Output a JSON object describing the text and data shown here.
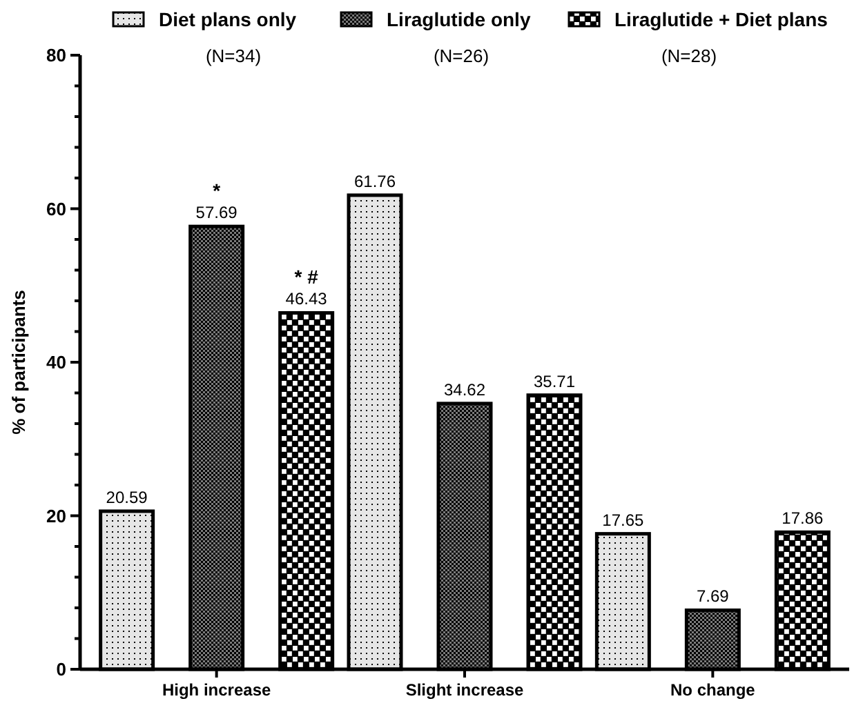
{
  "chart_data": {
    "type": "bar",
    "ylabel": "% of participants",
    "categories": [
      "High increase",
      "Slight increase",
      "No change"
    ],
    "series": [
      {
        "name": "Diet plans only",
        "color": "#e6e6e6",
        "values": [
          20.59,
          61.76,
          17.65
        ]
      },
      {
        "name": "Liraglutide only",
        "color": "#7a7a7a",
        "values": [
          57.69,
          34.62,
          7.69
        ]
      },
      {
        "name": "Liraglutide + Diet plans",
        "color": "#000000",
        "values": [
          46.43,
          35.71,
          17.86
        ]
      }
    ],
    "ylim": [
      0,
      80
    ],
    "yticks": [
      0,
      {
        "value": 4,
        "label": null
      },
      {
        "value": 8,
        "label": null
      },
      {
        "value": 12,
        "label": null
      },
      {
        "value": 16,
        "label": null
      },
      20,
      {
        "value": 24,
        "label": null
      },
      {
        "value": 28,
        "label": null
      },
      {
        "value": 32,
        "label": null
      },
      {
        "value": 36,
        "label": null
      },
      40,
      {
        "value": 44,
        "label": null
      },
      {
        "value": 48,
        "label": null
      },
      {
        "value": 52,
        "label": null
      },
      {
        "value": 56,
        "label": null
      },
      60,
      {
        "value": 64,
        "label": null
      },
      {
        "value": 68,
        "label": null
      },
      {
        "value": 72,
        "label": null
      },
      {
        "value": 76,
        "label": null
      },
      80
    ],
    "data_labels": true,
    "legend": "top",
    "grid": false,
    "annotations": [
      "(N=34)",
      "(N=26)",
      "(N=28)",
      "*",
      "* #"
    ]
  }
}
